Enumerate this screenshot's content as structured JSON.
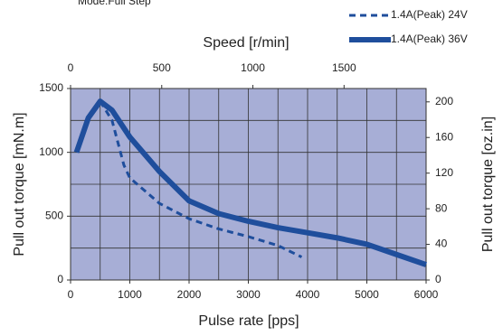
{
  "chart_data": {
    "type": "line",
    "note_text": "Mode:Full Step",
    "xlabel": "Pulse rate [pps]",
    "x2label": "Speed [r/min]",
    "ylabel": "Pull out torque [mN.m]",
    "y2label": "Pull out torque [oz.in]",
    "xlim": [
      0,
      6000
    ],
    "xticks": [
      0,
      1000,
      2000,
      3000,
      4000,
      5000,
      6000
    ],
    "x2lim": [
      0,
      1950
    ],
    "x2ticks": [
      0,
      500,
      1000,
      1500
    ],
    "ylim": [
      0,
      1500
    ],
    "yticks": [
      0,
      500,
      1000,
      1500
    ],
    "y2lim": [
      0,
      215
    ],
    "y2ticks": [
      0,
      40,
      80,
      120,
      160,
      200
    ],
    "xgrid": [
      500,
      1000,
      1500,
      2000,
      2500,
      3000,
      3500,
      4000,
      4500,
      5000,
      5500
    ],
    "ygrid": [
      250,
      500,
      750,
      1000,
      1250
    ],
    "background": "#a7aed6",
    "legend": "top-right",
    "series": [
      {
        "name": "1.4A(Peak) 24V",
        "color": "#1f4e9c",
        "dash": true,
        "x": [
          500,
          700,
          900,
          1000,
          1500,
          2000,
          2500,
          3000,
          3500,
          3900
        ],
        "values": [
          1400,
          1250,
          900,
          800,
          600,
          480,
          400,
          340,
          270,
          180
        ]
      },
      {
        "name": "1.4A(Peak) 36V",
        "color": "#1f4e9c",
        "dash": false,
        "x": [
          100,
          300,
          500,
          700,
          1000,
          1500,
          2000,
          2500,
          3000,
          3500,
          4000,
          4500,
          5000,
          5500,
          6000
        ],
        "values": [
          1000,
          1270,
          1400,
          1330,
          1120,
          850,
          620,
          520,
          460,
          410,
          370,
          330,
          280,
          200,
          120
        ]
      }
    ]
  }
}
